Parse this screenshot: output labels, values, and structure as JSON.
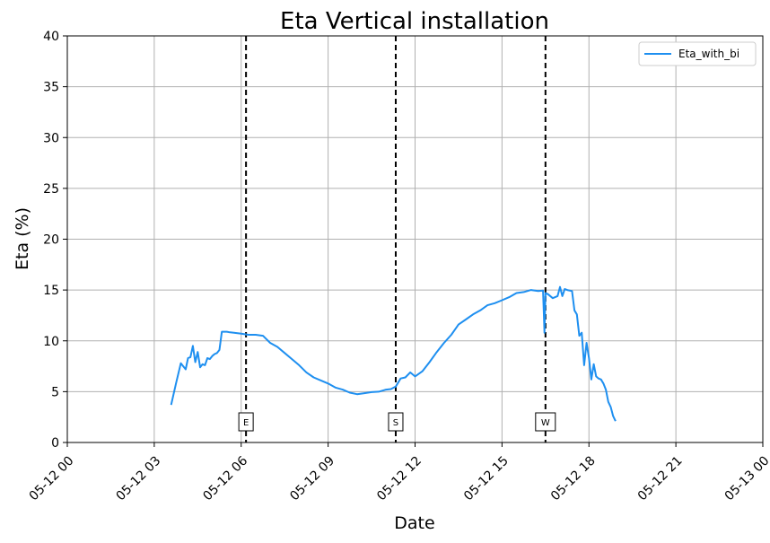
{
  "chart_data": {
    "type": "line",
    "title": "Eta Vertical installation",
    "xlabel": "Date",
    "ylabel": "Eta (%)",
    "xlim": [
      "05-12 00",
      "05-13 00"
    ],
    "ylim": [
      0,
      40
    ],
    "xticks": [
      "05-12 00",
      "05-12 03",
      "05-12 06",
      "05-12 09",
      "05-12 12",
      "05-12 15",
      "05-12 18",
      "05-12 21",
      "05-13 00"
    ],
    "yticks": [
      0,
      5,
      10,
      15,
      20,
      25,
      30,
      35,
      40
    ],
    "grid": true,
    "legend_position": "top-right",
    "colors": {
      "series": "#1e8ff0",
      "markers": "#000000"
    },
    "series": [
      {
        "name": "Eta_with_bi",
        "x": [
          "05-12 03:35",
          "05-12 03:45",
          "05-12 03:55",
          "05-12 04:05",
          "05-12 04:10",
          "05-12 04:15",
          "05-12 04:20",
          "05-12 04:25",
          "05-12 04:30",
          "05-12 04:35",
          "05-12 04:40",
          "05-12 04:45",
          "05-12 04:50",
          "05-12 04:55",
          "05-12 05:00",
          "05-12 05:05",
          "05-12 05:10",
          "05-12 05:15",
          "05-12 05:20",
          "05-12 05:30",
          "05-12 05:35",
          "05-12 05:45",
          "05-12 06:00",
          "05-12 06:15",
          "05-12 06:30",
          "05-12 06:45",
          "05-12 07:00",
          "05-12 07:15",
          "05-12 07:30",
          "05-12 07:45",
          "05-12 08:00",
          "05-12 08:15",
          "05-12 08:30",
          "05-12 08:45",
          "05-12 09:00",
          "05-12 09:15",
          "05-12 09:30",
          "05-12 09:45",
          "05-12 10:00",
          "05-12 10:15",
          "05-12 10:30",
          "05-12 10:45",
          "05-12 11:00",
          "05-12 11:10",
          "05-12 11:20",
          "05-12 11:30",
          "05-12 11:40",
          "05-12 11:50",
          "05-12 12:00",
          "05-12 12:15",
          "05-12 12:30",
          "05-12 12:45",
          "05-12 13:00",
          "05-12 13:15",
          "05-12 13:30",
          "05-12 13:45",
          "05-12 14:00",
          "05-12 14:15",
          "05-12 14:30",
          "05-12 14:45",
          "05-12 15:00",
          "05-12 15:15",
          "05-12 15:30",
          "05-12 15:45",
          "05-12 16:00",
          "05-12 16:15",
          "05-12 16:25",
          "05-12 16:28",
          "05-12 16:30",
          "05-12 16:35",
          "05-12 16:45",
          "05-12 16:55",
          "05-12 17:00",
          "05-12 17:05",
          "05-12 17:10",
          "05-12 17:15",
          "05-12 17:25",
          "05-12 17:30",
          "05-12 17:35",
          "05-12 17:40",
          "05-12 17:45",
          "05-12 17:50",
          "05-12 17:55",
          "05-12 18:00",
          "05-12 18:05",
          "05-12 18:10",
          "05-12 18:15",
          "05-12 18:20",
          "05-12 18:25",
          "05-12 18:30",
          "05-12 18:35",
          "05-12 18:40",
          "05-12 18:45",
          "05-12 18:50",
          "05-12 18:55"
        ],
        "y": [
          3.7,
          5.8,
          7.8,
          7.2,
          8.3,
          8.4,
          9.5,
          7.9,
          8.9,
          7.4,
          7.7,
          7.6,
          8.3,
          8.2,
          8.5,
          8.7,
          8.8,
          9.1,
          10.9,
          10.9,
          10.85,
          10.8,
          10.7,
          10.6,
          10.6,
          10.5,
          9.8,
          9.4,
          8.8,
          8.2,
          7.6,
          6.9,
          6.4,
          6.1,
          5.8,
          5.4,
          5.2,
          4.9,
          4.75,
          4.85,
          4.95,
          5.0,
          5.2,
          5.25,
          5.5,
          6.3,
          6.4,
          6.9,
          6.5,
          7.0,
          7.9,
          8.9,
          9.8,
          10.6,
          11.6,
          12.1,
          12.6,
          13.0,
          13.5,
          13.7,
          14.0,
          14.3,
          14.7,
          14.8,
          15.0,
          14.9,
          14.95,
          10.8,
          14.7,
          14.6,
          14.2,
          14.4,
          15.3,
          14.4,
          15.1,
          15.0,
          14.9,
          13.0,
          12.6,
          10.5,
          10.8,
          7.6,
          9.8,
          8.3,
          6.2,
          7.7,
          6.5,
          6.3,
          6.2,
          5.8,
          5.2,
          4.0,
          3.5,
          2.6,
          2.1
        ]
      }
    ],
    "vertical_markers": [
      {
        "label": "E",
        "x": "05-12 06:10"
      },
      {
        "label": "S",
        "x": "05-12 11:20"
      },
      {
        "label": "W",
        "x": "05-12 16:30"
      }
    ]
  }
}
